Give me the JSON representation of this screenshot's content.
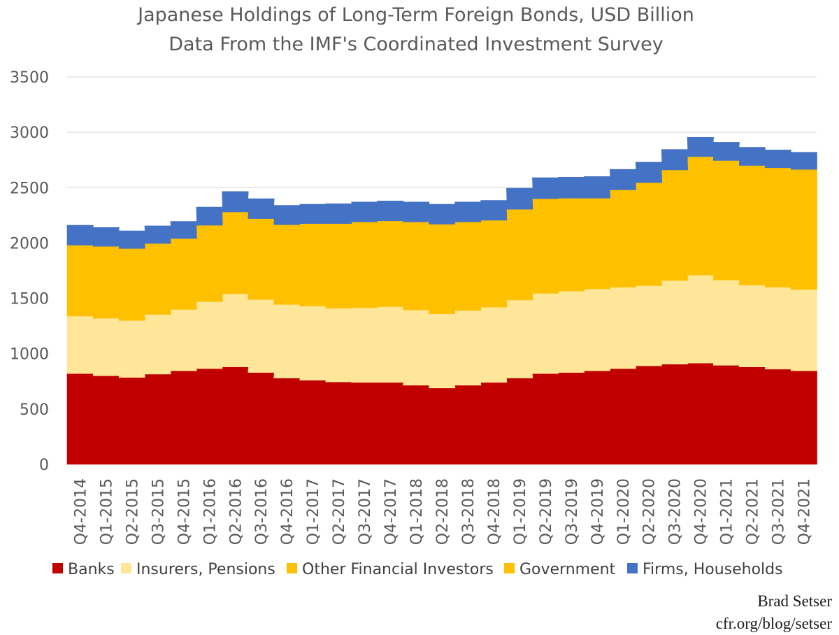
{
  "chart_data": {
    "type": "area",
    "stacked": true,
    "step": true,
    "title": "Japanese Holdings of Long-Term Foreign Bonds, USD Billion",
    "subtitle": "Data From the IMF's Coordinated Investment Survey",
    "xlabel": "",
    "ylabel": "",
    "ylim": [
      0,
      3500
    ],
    "yticks": [
      "0",
      "500",
      "1000",
      "1500",
      "2000",
      "2500",
      "3000",
      "3500"
    ],
    "grid": true,
    "legend_position": "bottom",
    "x": [
      "Q4-2014",
      "Q1-2015",
      "Q2-2015",
      "Q3-2015",
      "Q4-2015",
      "Q1-2016",
      "Q2-2016",
      "Q3-2016",
      "Q4-2016",
      "Q1-2017",
      "Q2-2017",
      "Q3-2017",
      "Q4-2017",
      "Q1-2018",
      "Q2-2018",
      "Q3-2018",
      "Q4-2018",
      "Q1-2019",
      "Q2-2019",
      "Q3-2019",
      "Q4-2019",
      "Q1-2020",
      "Q2-2020",
      "Q3-2020",
      "Q4-2020",
      "Q1-2021",
      "Q2-2021",
      "Q3-2021",
      "Q4-2021"
    ],
    "series": [
      {
        "name": "Banks",
        "color": "#c00000",
        "values": [
          820,
          800,
          785,
          815,
          845,
          865,
          880,
          830,
          780,
          760,
          745,
          740,
          740,
          715,
          690,
          715,
          740,
          780,
          820,
          830,
          845,
          865,
          890,
          905,
          915,
          895,
          880,
          860,
          845
        ]
      },
      {
        "name": "Insurers, Pensions",
        "color": "#ffe699",
        "values": [
          520,
          520,
          515,
          540,
          555,
          605,
          660,
          660,
          665,
          670,
          665,
          675,
          685,
          680,
          670,
          675,
          680,
          705,
          725,
          735,
          740,
          735,
          725,
          755,
          795,
          770,
          740,
          740,
          735
        ]
      },
      {
        "name": "Other Financial Investors",
        "color": "#ffc000",
        "values": [
          640,
          650,
          650,
          640,
          640,
          690,
          740,
          730,
          720,
          745,
          765,
          775,
          775,
          795,
          810,
          800,
          785,
          820,
          855,
          840,
          820,
          880,
          930,
          1000,
          1070,
          1080,
          1080,
          1080,
          1085
        ]
      },
      {
        "name": "Government",
        "color": "#ffc000",
        "values": [
          0,
          0,
          0,
          0,
          0,
          0,
          0,
          0,
          0,
          0,
          0,
          0,
          0,
          0,
          0,
          0,
          0,
          0,
          0,
          0,
          0,
          0,
          0,
          0,
          0,
          0,
          0,
          0,
          0
        ]
      },
      {
        "name": "Firms, Households",
        "color": "#4472c4",
        "values": [
          180,
          170,
          160,
          160,
          155,
          165,
          185,
          180,
          175,
          175,
          180,
          180,
          180,
          180,
          180,
          180,
          180,
          190,
          190,
          190,
          195,
          185,
          185,
          185,
          175,
          165,
          165,
          160,
          155
        ]
      }
    ]
  },
  "credit": {
    "author": "Brad Setser",
    "source": "cfr.org/blog/setser"
  }
}
